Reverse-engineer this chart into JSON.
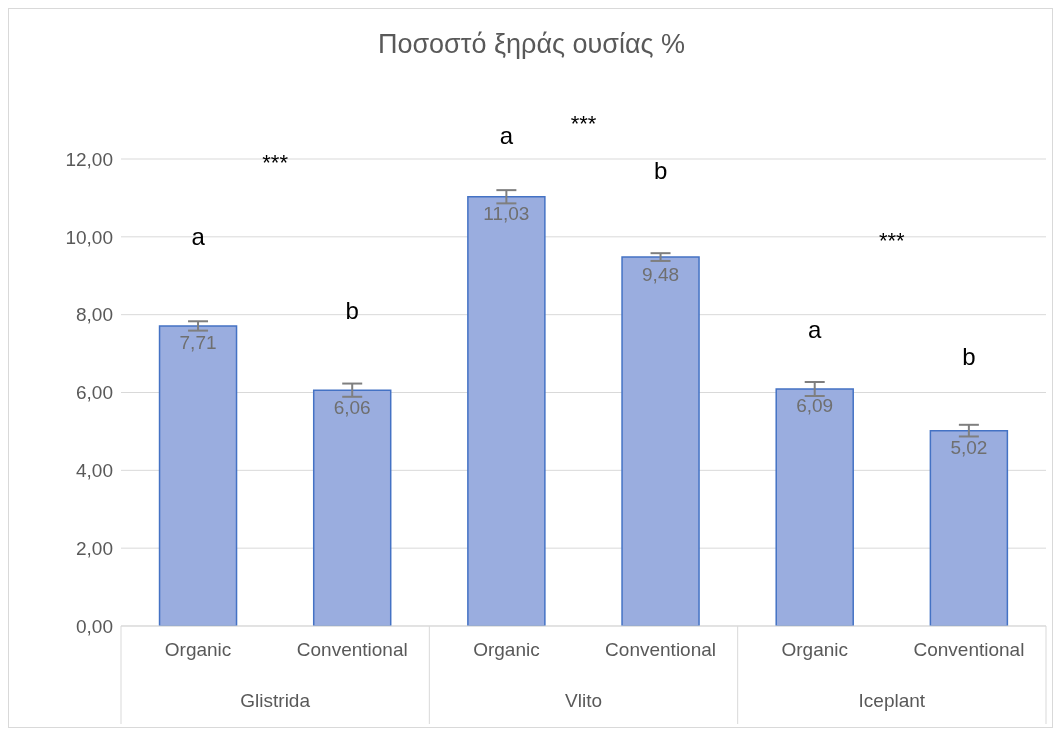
{
  "chart_data": {
    "type": "bar",
    "title": "Ποσοστό ξηράς ουσίας %",
    "categories": [
      "Organic",
      "Conventional",
      "Organic",
      "Conventional",
      "Organic",
      "Conventional"
    ],
    "values": [
      7.71,
      6.06,
      11.03,
      9.48,
      6.09,
      5.02
    ],
    "errors": [
      0.12,
      0.17,
      0.17,
      0.1,
      0.18,
      0.15
    ],
    "value_labels": [
      "7,71",
      "6,06",
      "11,03",
      "9,48",
      "6,09",
      "5,02"
    ],
    "color": "#9aaddf",
    "ylim": [
      0,
      12
    ],
    "yticks": [
      {
        "value": 0,
        "label": "0,00"
      },
      {
        "value": 2,
        "label": "2,00"
      },
      {
        "value": 4,
        "label": "4,00"
      },
      {
        "value": 6,
        "label": "6,00"
      },
      {
        "value": 8,
        "label": "8,00"
      },
      {
        "value": 10,
        "label": "10,00"
      },
      {
        "value": 12,
        "label": "12,00"
      }
    ],
    "grid": "y",
    "legend": false,
    "annotations": [
      "Glistrida",
      "Vlito",
      "Iceplant",
      "a",
      "b",
      "a",
      "b",
      "a",
      "b",
      "***",
      "***",
      "***"
    ]
  }
}
